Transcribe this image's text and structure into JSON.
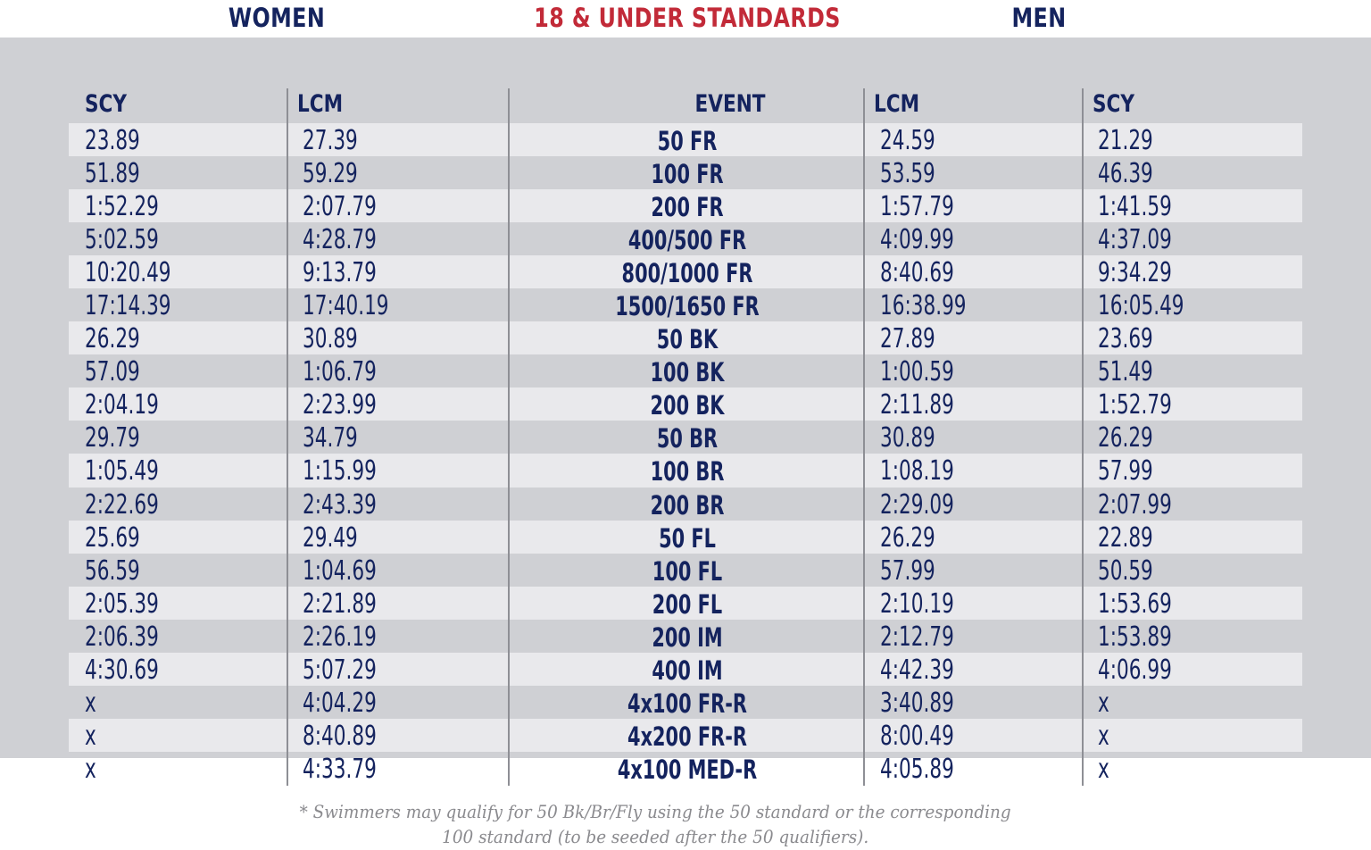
{
  "header": {
    "women": "WOMEN",
    "title": "18 & UNDER STANDARDS",
    "men": "MEN"
  },
  "columns": {
    "women_scy": "SCY",
    "women_lcm": "LCM",
    "event": "EVENT",
    "men_lcm": "LCM",
    "men_scy": "SCY"
  },
  "rows": [
    {
      "w_scy": "23.89",
      "w_lcm": "27.39",
      "event": "50 FR",
      "m_lcm": "24.59",
      "m_scy": "21.29"
    },
    {
      "w_scy": "51.89",
      "w_lcm": "59.29",
      "event": "100 FR",
      "m_lcm": "53.59",
      "m_scy": "46.39"
    },
    {
      "w_scy": "1:52.29",
      "w_lcm": "2:07.79",
      "event": "200 FR",
      "m_lcm": "1:57.79",
      "m_scy": "1:41.59"
    },
    {
      "w_scy": "5:02.59",
      "w_lcm": "4:28.79",
      "event": "400/500 FR",
      "m_lcm": "4:09.99",
      "m_scy": "4:37.09"
    },
    {
      "w_scy": "10:20.49",
      "w_lcm": "9:13.79",
      "event": "800/1000 FR",
      "m_lcm": "8:40.69",
      "m_scy": "9:34.29"
    },
    {
      "w_scy": "17:14.39",
      "w_lcm": "17:40.19",
      "event": "1500/1650 FR",
      "m_lcm": "16:38.99",
      "m_scy": "16:05.49"
    },
    {
      "w_scy": "26.29",
      "w_lcm": "30.89",
      "event": "50 BK",
      "m_lcm": "27.89",
      "m_scy": "23.69"
    },
    {
      "w_scy": "57.09",
      "w_lcm": "1:06.79",
      "event": "100 BK",
      "m_lcm": "1:00.59",
      "m_scy": "51.49"
    },
    {
      "w_scy": "2:04.19",
      "w_lcm": "2:23.99",
      "event": "200 BK",
      "m_lcm": "2:11.89",
      "m_scy": "1:52.79"
    },
    {
      "w_scy": "29.79",
      "w_lcm": "34.79",
      "event": "50 BR",
      "m_lcm": "30.89",
      "m_scy": "26.29"
    },
    {
      "w_scy": "1:05.49",
      "w_lcm": "1:15.99",
      "event": "100 BR",
      "m_lcm": "1:08.19",
      "m_scy": "57.99"
    },
    {
      "w_scy": "2:22.69",
      "w_lcm": "2:43.39",
      "event": "200 BR",
      "m_lcm": "2:29.09",
      "m_scy": "2:07.99"
    },
    {
      "w_scy": "25.69",
      "w_lcm": "29.49",
      "event": "50 FL",
      "m_lcm": "26.29",
      "m_scy": "22.89"
    },
    {
      "w_scy": "56.59",
      "w_lcm": "1:04.69",
      "event": "100 FL",
      "m_lcm": "57.99",
      "m_scy": "50.59"
    },
    {
      "w_scy": "2:05.39",
      "w_lcm": "2:21.89",
      "event": "200 FL",
      "m_lcm": "2:10.19",
      "m_scy": "1:53.69"
    },
    {
      "w_scy": "2:06.39",
      "w_lcm": "2:26.19",
      "event": "200 IM",
      "m_lcm": "2:12.79",
      "m_scy": "1:53.89"
    },
    {
      "w_scy": "4:30.69",
      "w_lcm": "5:07.29",
      "event": "400 IM",
      "m_lcm": "4:42.39",
      "m_scy": "4:06.99"
    },
    {
      "w_scy": "x",
      "w_lcm": "4:04.29",
      "event": "4x100 FR-R",
      "m_lcm": "3:40.89",
      "m_scy": "x"
    },
    {
      "w_scy": "x",
      "w_lcm": "8:40.89",
      "event": "4x200 FR-R",
      "m_lcm": "8:00.49",
      "m_scy": "x"
    },
    {
      "w_scy": "x",
      "w_lcm": "4:33.79",
      "event": "4x100 MED-R",
      "m_lcm": "4:05.89",
      "m_scy": "x"
    }
  ],
  "footnote": {
    "line1": "* Swimmers may qualify for 50 Bk/Br/Fly using the 50 standard or the corresponding",
    "line2": "100 standard (to be seeded after the 50 qualifiers)."
  },
  "colors": {
    "navy": "#14235e",
    "red": "#c22a38",
    "panel": "#cfd0d4",
    "stripe": "#e9e9ec",
    "footnote": "#8a8a8e"
  }
}
